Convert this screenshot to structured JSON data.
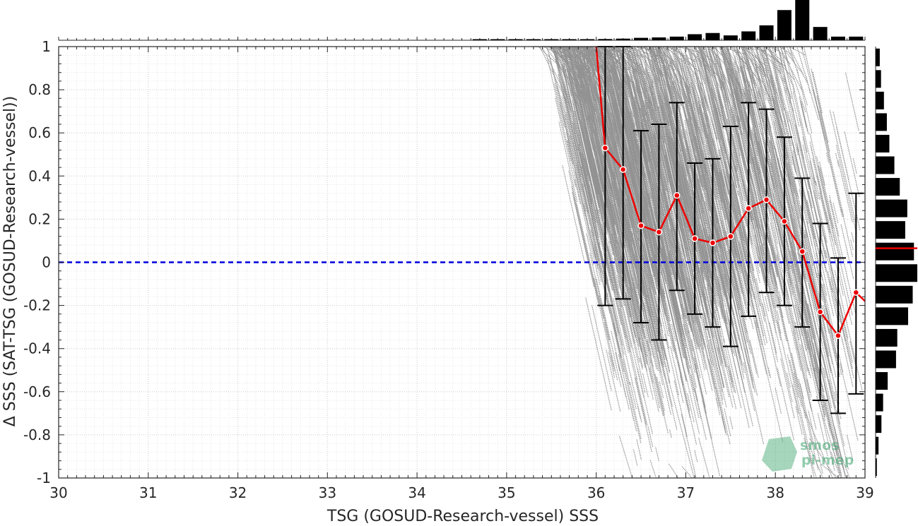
{
  "chart_data": {
    "type": "scatter",
    "xlabel": "TSG (GOSUD-Research-vessel) SSS",
    "ylabel": "Δ SSS (SAT-TSG (GOSUD-Research-vessel))",
    "xlim": [
      30,
      39
    ],
    "ylim": [
      -1,
      1
    ],
    "x_ticks": [
      30,
      31,
      32,
      33,
      34,
      35,
      36,
      37,
      38,
      39
    ],
    "y_ticks": [
      -1,
      -0.8,
      -0.6,
      -0.4,
      -0.2,
      0,
      0.2,
      0.4,
      0.6,
      0.8,
      1
    ],
    "x_tick_labels": [
      "30",
      "31",
      "32",
      "33",
      "34",
      "35",
      "36",
      "37",
      "38",
      "39"
    ],
    "y_tick_labels": [
      "-1",
      "-0.8",
      "-0.6",
      "-0.4",
      "-0.2",
      "0",
      "0.2",
      "0.4",
      "0.6",
      "0.8",
      "1"
    ],
    "grid": true,
    "zero_line": {
      "y": 0,
      "color": "#0000dd",
      "style": "dashed"
    },
    "scatter_color": "#8c8c8c",
    "mean_line_color": "#ee0000",
    "errorbar_color": "#000000",
    "binned_mean": {
      "x": [
        36.1,
        36.3,
        36.5,
        36.7,
        36.9,
        37.1,
        37.3,
        37.5,
        37.7,
        37.9,
        38.1,
        38.3,
        38.5,
        38.7,
        38.9
      ],
      "y": [
        0.53,
        0.43,
        0.17,
        0.14,
        0.31,
        0.11,
        0.09,
        0.12,
        0.25,
        0.29,
        0.19,
        0.05,
        -0.23,
        -0.34,
        -0.14
      ],
      "lower": [
        -0.2,
        -0.17,
        -0.28,
        -0.36,
        -0.13,
        -0.24,
        -0.3,
        -0.39,
        -0.25,
        -0.14,
        -0.2,
        -0.3,
        -0.64,
        -0.7,
        -0.61
      ],
      "upper": [
        1.0,
        1.0,
        0.61,
        0.64,
        0.74,
        0.46,
        0.48,
        0.63,
        0.74,
        0.71,
        0.58,
        0.39,
        0.18,
        0.02,
        0.32
      ]
    },
    "mean_line_start": {
      "x": [
        36.0,
        36.1
      ],
      "y": [
        1.0,
        0.53
      ]
    },
    "mean_line_end": {
      "x": [
        38.9,
        39.0
      ],
      "y": [
        -0.14,
        -0.18
      ]
    },
    "x_histogram": {
      "bin_centers": [
        34.7,
        34.9,
        35.1,
        35.3,
        35.5,
        35.7,
        35.9,
        36.1,
        36.3,
        36.5,
        36.7,
        36.9,
        37.1,
        37.3,
        37.5,
        37.7,
        37.9,
        38.1,
        38.3,
        38.5,
        38.7,
        38.9
      ],
      "relative_counts": [
        0.01,
        0.01,
        0.01,
        0.01,
        0.01,
        0.01,
        0.02,
        0.03,
        0.04,
        0.06,
        0.07,
        0.09,
        0.15,
        0.18,
        0.12,
        0.22,
        0.37,
        0.75,
        1.0,
        0.33,
        0.09,
        0.09
      ]
    },
    "y_histogram": {
      "bin_centers": [
        0.95,
        0.85,
        0.75,
        0.65,
        0.55,
        0.45,
        0.35,
        0.25,
        0.15,
        0.05,
        -0.05,
        -0.15,
        -0.25,
        -0.35,
        -0.45,
        -0.55,
        -0.65,
        -0.75,
        -0.85,
        -0.95
      ],
      "relative_counts": [
        0.1,
        0.13,
        0.2,
        0.27,
        0.33,
        0.45,
        0.58,
        0.76,
        0.71,
        0.92,
        1.0,
        0.89,
        0.78,
        0.52,
        0.49,
        0.29,
        0.18,
        0.14,
        0.07,
        0.03
      ],
      "mean_marker_y": 0.065
    }
  },
  "watermark": {
    "line1": "smos",
    "line2": "pi-mep",
    "color": "#3aa36b"
  }
}
